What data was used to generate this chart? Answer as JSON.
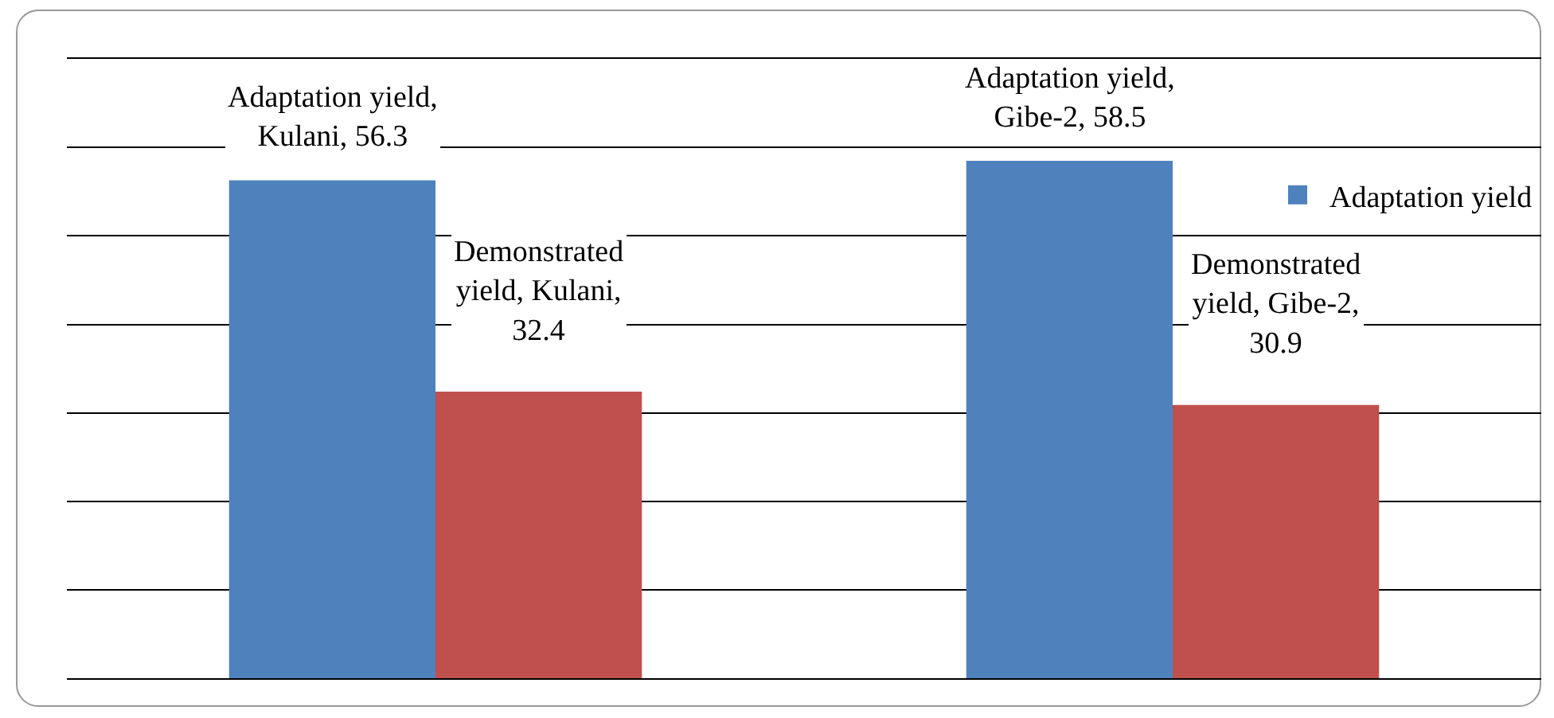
{
  "chart_data": {
    "type": "bar",
    "categories": [
      null,
      null
    ],
    "series": [
      {
        "name": "Adaptation yield",
        "color": "#4f81bd",
        "values": [
          56.3,
          58.5
        ],
        "value_labels": [
          "Adaptation yield, Kulani, 56.3",
          "Adaptation yield, Gibe-2, 58.5"
        ]
      },
      {
        "color": "#c0504d",
        "values": [
          32.4,
          30.9
        ],
        "value_labels": [
          "Demonstrated yield, Kulani, 32.4",
          "Demonstrated yield, Gibe-2, 30.9"
        ]
      }
    ],
    "grid": "y",
    "legend": "right",
    "tick_labels": false
  }
}
